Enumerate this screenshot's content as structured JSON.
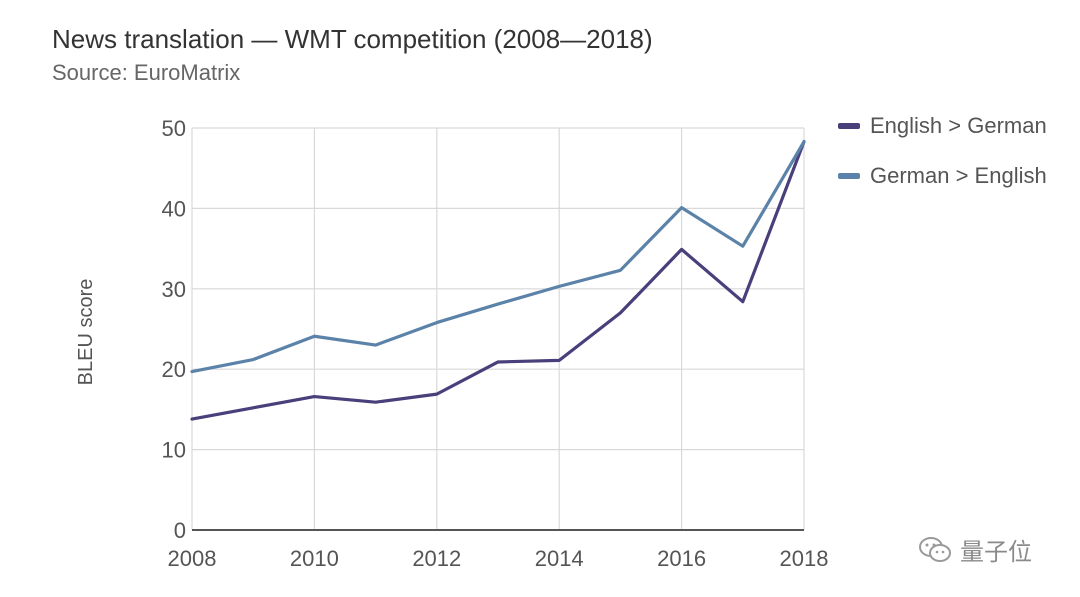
{
  "title": "News translation — WMT competition (2008—2018)",
  "subtitle": "Source: EuroMatrix",
  "watermark": "量子位",
  "chart_data": {
    "type": "line",
    "x": [
      2008,
      2009,
      2010,
      2011,
      2012,
      2013,
      2014,
      2015,
      2016,
      2017,
      2018
    ],
    "x_ticks": [
      2008,
      2010,
      2012,
      2014,
      2016,
      2018
    ],
    "y_ticks": [
      0,
      10,
      20,
      30,
      40,
      50
    ],
    "xlim": [
      2008,
      2018
    ],
    "ylim": [
      0,
      50
    ],
    "ylabel": "BLEU score",
    "xlabel": "",
    "grid": true,
    "legend_position": "top-right",
    "series": [
      {
        "name": "English > German",
        "color": "#4a3f7a",
        "values": [
          13.8,
          15.2,
          16.6,
          15.9,
          16.9,
          20.9,
          21.1,
          27.0,
          34.9,
          28.4,
          48.3
        ]
      },
      {
        "name": "German > English",
        "color": "#5b82a8",
        "values": [
          19.7,
          21.2,
          24.1,
          23.0,
          25.8,
          28.1,
          30.3,
          32.3,
          40.1,
          35.3,
          48.3
        ]
      }
    ]
  }
}
